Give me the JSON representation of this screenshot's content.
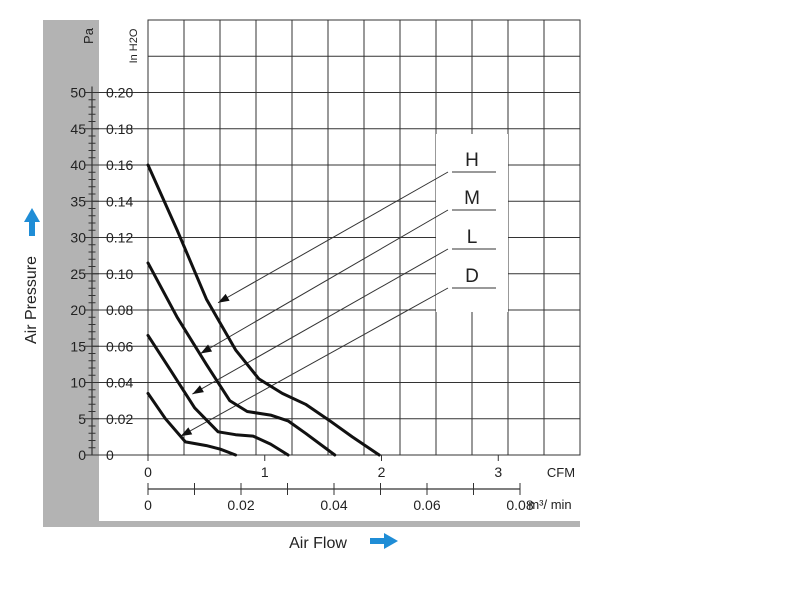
{
  "chart_data": {
    "type": "line",
    "title": "",
    "xlabel": "Air Flow",
    "ylabel": "Air Pressure",
    "x_primary_unit": "CFM",
    "x_primary_ticks": [
      "0",
      "1",
      "2",
      "3"
    ],
    "x_primary_range": [
      0,
      3.7
    ],
    "x_secondary_unit": "m³/ min",
    "x_secondary_ticks": [
      "0",
      "0.02",
      "0.04",
      "0.06",
      "0.08"
    ],
    "y_primary_unit": "Pa",
    "y_primary_ticks": [
      "0",
      "5",
      "10",
      "15",
      "20",
      "25",
      "30",
      "35",
      "40",
      "45",
      "50"
    ],
    "y_primary_range": [
      0,
      60
    ],
    "y_secondary_unit": "In H2O",
    "y_secondary_ticks": [
      "0",
      "0.02",
      "0.04",
      "0.06",
      "0.08",
      "0.10",
      "0.12",
      "0.14",
      "0.16",
      "0.18",
      "0.20"
    ],
    "grid": true,
    "legend_position": "right",
    "series": [
      {
        "name": "H",
        "x": [
          0,
          0.25,
          0.5,
          0.75,
          0.95,
          1.15,
          1.35,
          1.55,
          1.75,
          1.98
        ],
        "y": [
          40,
          31,
          21.5,
          14.5,
          10.5,
          8.5,
          7,
          4.8,
          2.5,
          0
        ]
      },
      {
        "name": "M",
        "x": [
          0,
          0.25,
          0.5,
          0.7,
          0.85,
          1.05,
          1.2,
          1.35,
          1.6
        ],
        "y": [
          26.5,
          19,
          12.5,
          7.5,
          6,
          5.5,
          4.7,
          3,
          0
        ]
      },
      {
        "name": "L",
        "x": [
          0,
          0.2,
          0.4,
          0.6,
          0.75,
          0.9,
          1.05,
          1.2
        ],
        "y": [
          16.5,
          11.5,
          6.5,
          3.2,
          2.8,
          2.6,
          1.5,
          0
        ]
      },
      {
        "name": "D",
        "x": [
          0,
          0.15,
          0.32,
          0.5,
          0.62,
          0.75
        ],
        "y": [
          8.5,
          5,
          1.8,
          1.3,
          0.8,
          0
        ]
      }
    ],
    "colors": {
      "curve": "#111111",
      "grid": "#333333",
      "sidebar": "#b3b3b3",
      "arrow": "#1f8dd6"
    }
  }
}
